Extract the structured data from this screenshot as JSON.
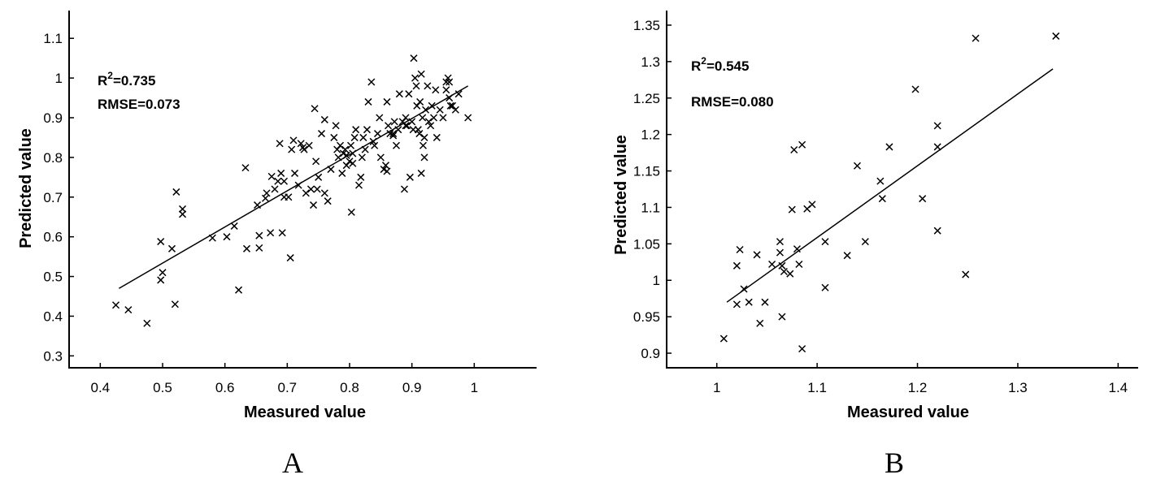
{
  "panels": [
    {
      "label": "A",
      "r2_label": "R",
      "r2_sup": "2",
      "r2_value": "=0.735",
      "rmse_text": "RMSE=0.073",
      "chart_data": {
        "type": "scatter",
        "xlabel": "Measured value",
        "ylabel": "Predicted value",
        "xlim": [
          0.35,
          1.1
        ],
        "ylim": [
          0.27,
          1.17
        ],
        "xticks": [
          0.4,
          0.5,
          0.6,
          0.7,
          0.8,
          0.9,
          1
        ],
        "xtick_labels": [
          "0.4",
          "0.5",
          "0.6",
          "0.7",
          "0.8",
          "0.9",
          "1"
        ],
        "yticks": [
          0.3,
          0.4,
          0.5,
          0.6,
          0.7,
          0.8,
          0.9,
          1,
          1.1
        ],
        "ytick_labels": [
          "0.3",
          "0.4",
          "0.5",
          "0.6",
          "0.7",
          "0.8",
          "0.9",
          "1",
          "1.1"
        ],
        "fit_line": [
          [
            0.43,
            0.47
          ],
          [
            0.99,
            0.98
          ]
        ],
        "points": [
          [
            0.425,
            0.428
          ],
          [
            0.445,
            0.416
          ],
          [
            0.475,
            0.382
          ],
          [
            0.497,
            0.588
          ],
          [
            0.497,
            0.491
          ],
          [
            0.5,
            0.51
          ],
          [
            0.515,
            0.57
          ],
          [
            0.52,
            0.43
          ],
          [
            0.522,
            0.713
          ],
          [
            0.532,
            0.67
          ],
          [
            0.532,
            0.657
          ],
          [
            0.58,
            0.597
          ],
          [
            0.603,
            0.6
          ],
          [
            0.615,
            0.627
          ],
          [
            0.622,
            0.466
          ],
          [
            0.633,
            0.774
          ],
          [
            0.635,
            0.57
          ],
          [
            0.652,
            0.68
          ],
          [
            0.655,
            0.603
          ],
          [
            0.655,
            0.572
          ],
          [
            0.665,
            0.697
          ],
          [
            0.667,
            0.71
          ],
          [
            0.673,
            0.61
          ],
          [
            0.675,
            0.752
          ],
          [
            0.68,
            0.72
          ],
          [
            0.685,
            0.74
          ],
          [
            0.688,
            0.835
          ],
          [
            0.69,
            0.76
          ],
          [
            0.692,
            0.61
          ],
          [
            0.695,
            0.74
          ],
          [
            0.695,
            0.7
          ],
          [
            0.702,
            0.7
          ],
          [
            0.705,
            0.547
          ],
          [
            0.707,
            0.82
          ],
          [
            0.71,
            0.843
          ],
          [
            0.712,
            0.76
          ],
          [
            0.718,
            0.73
          ],
          [
            0.722,
            0.835
          ],
          [
            0.727,
            0.82
          ],
          [
            0.73,
            0.71
          ],
          [
            0.735,
            0.83
          ],
          [
            0.738,
            0.72
          ],
          [
            0.742,
            0.68
          ],
          [
            0.744,
            0.923
          ],
          [
            0.746,
            0.79
          ],
          [
            0.748,
            0.72
          ],
          [
            0.75,
            0.75
          ],
          [
            0.755,
            0.86
          ],
          [
            0.76,
            0.895
          ],
          [
            0.76,
            0.71
          ],
          [
            0.765,
            0.69
          ],
          [
            0.77,
            0.77
          ],
          [
            0.775,
            0.85
          ],
          [
            0.778,
            0.88
          ],
          [
            0.78,
            0.82
          ],
          [
            0.782,
            0.8
          ],
          [
            0.785,
            0.83
          ],
          [
            0.788,
            0.76
          ],
          [
            0.79,
            0.81
          ],
          [
            0.793,
            0.82
          ],
          [
            0.795,
            0.78
          ],
          [
            0.8,
            0.79
          ],
          [
            0.802,
            0.83
          ],
          [
            0.803,
            0.662
          ],
          [
            0.805,
            0.81
          ],
          [
            0.808,
            0.85
          ],
          [
            0.81,
            0.87
          ],
          [
            0.815,
            0.73
          ],
          [
            0.818,
            0.75
          ],
          [
            0.82,
            0.8
          ],
          [
            0.822,
            0.85
          ],
          [
            0.825,
            0.82
          ],
          [
            0.828,
            0.87
          ],
          [
            0.83,
            0.94
          ],
          [
            0.835,
            0.99
          ],
          [
            0.838,
            0.84
          ],
          [
            0.84,
            0.83
          ],
          [
            0.845,
            0.86
          ],
          [
            0.848,
            0.9
          ],
          [
            0.85,
            0.8
          ],
          [
            0.855,
            0.77
          ],
          [
            0.858,
            0.78
          ],
          [
            0.86,
            0.94
          ],
          [
            0.862,
            0.88
          ],
          [
            0.865,
            0.86
          ],
          [
            0.87,
            0.86
          ],
          [
            0.872,
            0.89
          ],
          [
            0.875,
            0.83
          ],
          [
            0.878,
            0.87
          ],
          [
            0.88,
            0.96
          ],
          [
            0.885,
            0.89
          ],
          [
            0.888,
            0.72
          ],
          [
            0.89,
            0.9
          ],
          [
            0.892,
            0.88
          ],
          [
            0.895,
            0.96
          ],
          [
            0.897,
            0.75
          ],
          [
            0.9,
            0.89
          ],
          [
            0.902,
            0.87
          ],
          [
            0.903,
            1.05
          ],
          [
            0.905,
            1.0
          ],
          [
            0.907,
            0.98
          ],
          [
            0.908,
            0.93
          ],
          [
            0.91,
            0.87
          ],
          [
            0.912,
            0.86
          ],
          [
            0.913,
            0.94
          ],
          [
            0.915,
            1.01
          ],
          [
            0.915,
            0.76
          ],
          [
            0.917,
            0.9
          ],
          [
            0.918,
            0.83
          ],
          [
            0.92,
            0.85
          ],
          [
            0.92,
            0.8
          ],
          [
            0.922,
            0.92
          ],
          [
            0.925,
            0.98
          ],
          [
            0.927,
            0.89
          ],
          [
            0.93,
            0.88
          ],
          [
            0.932,
            0.93
          ],
          [
            0.935,
            0.9
          ],
          [
            0.938,
            0.97
          ],
          [
            0.94,
            0.85
          ],
          [
            0.945,
            0.92
          ],
          [
            0.95,
            0.9
          ],
          [
            0.955,
            0.99
          ],
          [
            0.958,
            1.0
          ],
          [
            0.96,
            0.95
          ],
          [
            0.962,
            0.93
          ],
          [
            0.965,
            0.93
          ],
          [
            0.97,
            0.92
          ],
          [
            0.975,
            0.96
          ],
          [
            0.99,
            0.9
          ],
          [
            0.96,
            0.99
          ],
          [
            0.955,
            0.97
          ],
          [
            0.725,
            0.825
          ],
          [
            0.805,
            0.785
          ],
          [
            0.795,
            0.805
          ],
          [
            0.86,
            0.765
          ],
          [
            0.89,
            0.88
          ],
          [
            0.87,
            0.855
          ]
        ]
      }
    },
    {
      "label": "B",
      "r2_label": "R",
      "r2_sup": "2",
      "r2_value": "=0.545",
      "rmse_text": "RMSE=0.080",
      "chart_data": {
        "type": "scatter",
        "xlabel": "Measured value",
        "ylabel": "Predicted value",
        "xlim": [
          0.95,
          1.42
        ],
        "ylim": [
          0.88,
          1.37
        ],
        "xticks": [
          1,
          1.1,
          1.2,
          1.3,
          1.4
        ],
        "xtick_labels": [
          "1",
          "1.1",
          "1.2",
          "1.3",
          "1.4"
        ],
        "yticks": [
          0.9,
          0.95,
          1,
          1.05,
          1.1,
          1.15,
          1.2,
          1.25,
          1.3,
          1.35
        ],
        "ytick_labels": [
          "0.9",
          "0.95",
          "1",
          "1.05",
          "1.1",
          "1.15",
          "1.2",
          "1.25",
          "1.3",
          "1.35"
        ],
        "fit_line": [
          [
            1.01,
            0.97
          ],
          [
            1.335,
            1.29
          ]
        ],
        "points": [
          [
            1.007,
            0.92
          ],
          [
            1.02,
            1.02
          ],
          [
            1.02,
            0.967
          ],
          [
            1.023,
            1.042
          ],
          [
            1.027,
            0.988
          ],
          [
            1.032,
            0.97
          ],
          [
            1.04,
            1.035
          ],
          [
            1.043,
            0.941
          ],
          [
            1.048,
            0.97
          ],
          [
            1.055,
            1.022
          ],
          [
            1.063,
            1.053
          ],
          [
            1.063,
            1.038
          ],
          [
            1.065,
            0.95
          ],
          [
            1.065,
            1.02
          ],
          [
            1.067,
            1.012
          ],
          [
            1.073,
            1.009
          ],
          [
            1.075,
            1.097
          ],
          [
            1.077,
            1.179
          ],
          [
            1.08,
            1.043
          ],
          [
            1.082,
            1.022
          ],
          [
            1.085,
            0.906
          ],
          [
            1.085,
            1.186
          ],
          [
            1.09,
            1.098
          ],
          [
            1.095,
            1.104
          ],
          [
            1.108,
            1.053
          ],
          [
            1.108,
            0.99
          ],
          [
            1.13,
            1.034
          ],
          [
            1.14,
            1.157
          ],
          [
            1.148,
            1.053
          ],
          [
            1.163,
            1.136
          ],
          [
            1.165,
            1.112
          ],
          [
            1.172,
            1.183
          ],
          [
            1.198,
            1.262
          ],
          [
            1.205,
            1.112
          ],
          [
            1.22,
            1.212
          ],
          [
            1.22,
            1.183
          ],
          [
            1.22,
            1.068
          ],
          [
            1.248,
            1.008
          ],
          [
            1.258,
            1.332
          ],
          [
            1.338,
            1.335
          ]
        ]
      }
    }
  ]
}
